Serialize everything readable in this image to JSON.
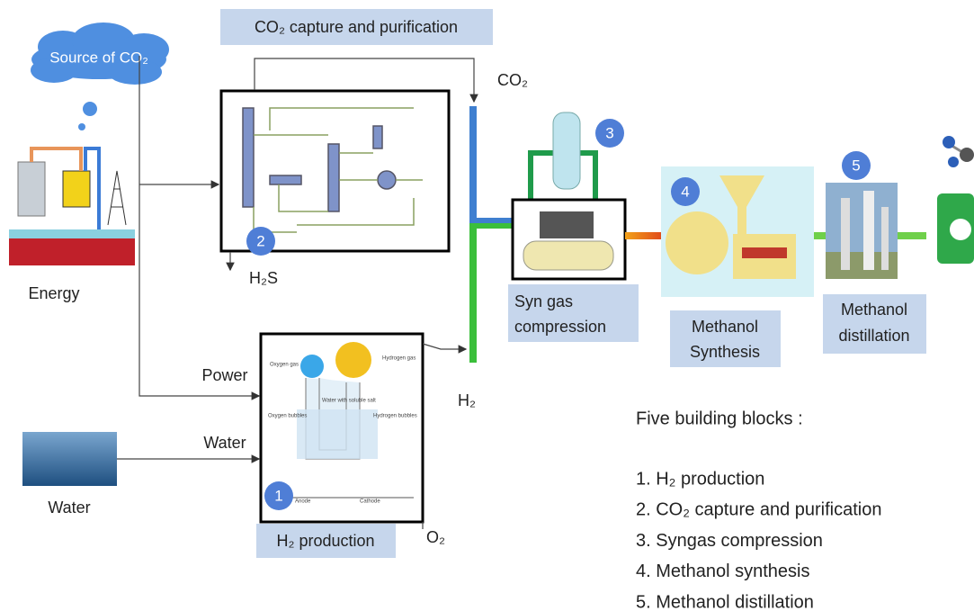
{
  "header": {
    "title": "CO₂ capture and purification"
  },
  "source": {
    "label": "Source of CO₂"
  },
  "energy": {
    "label": "Energy"
  },
  "flows": {
    "co2": "CO₂",
    "h2s": "H₂S",
    "power": "Power",
    "water": "Water",
    "h2": "H₂",
    "o2": "O₂"
  },
  "water_source": {
    "label": "Water"
  },
  "electrolysis": {
    "oxygen_gas": "Oxygen gas",
    "hydrogen_gas": "Hydrogen gas",
    "oxygen_bubbles": "Oxygen bubbles",
    "water_salt": "Water with soluble salt",
    "hydrogen_bubbles": "Hydrogen bubbles",
    "anode": "Anode",
    "cathode": "Cathode"
  },
  "steps": [
    {
      "number": 1,
      "lines": [
        "H₂ production"
      ]
    },
    {
      "number": 2
    },
    {
      "number": 3,
      "lines": [
        "Syn gas",
        "compression"
      ]
    },
    {
      "number": 4,
      "lines": [
        "Methanol",
        "Synthesis"
      ]
    },
    {
      "number": 5,
      "lines": [
        "Methanol",
        "distillation"
      ]
    }
  ],
  "summary": {
    "title": "Five building blocks :",
    "items": [
      "1. H₂ production",
      "2. CO₂ capture and purification",
      "3. Syngas compression",
      "4. Methanol synthesis",
      "5. Methanol distillation"
    ]
  }
}
